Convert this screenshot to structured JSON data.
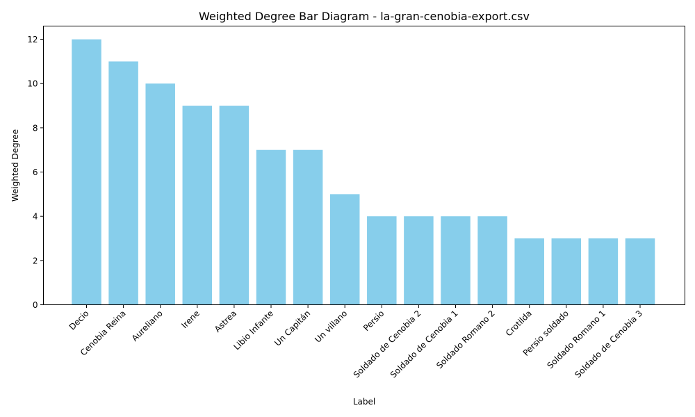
{
  "chart_data": {
    "type": "bar",
    "title": "Weighted Degree Bar Diagram - la-gran-cenobia-export.csv",
    "xlabel": "Label",
    "ylabel": "Weighted Degree",
    "categories": [
      "Decio",
      "Cenobia Reina",
      "Aureliano",
      "Irene",
      "Astrea",
      "Libio Infante",
      "Un Capitán",
      "Un villano",
      "Persio",
      "Soldado de Cenobia 2",
      "Soldado de Cenobia 1",
      "Soldado Romano 2",
      "Crotilda",
      "Persio soldado",
      "Soldado Romano 1",
      "Soldado de Cenobia 3"
    ],
    "values": [
      12,
      11,
      10,
      9,
      9,
      7,
      7,
      5,
      4,
      4,
      4,
      4,
      3,
      3,
      3,
      3
    ],
    "ylim": [
      0,
      12.6
    ],
    "yticks": [
      0,
      2,
      4,
      6,
      8,
      10,
      12
    ],
    "bar_color": "#87ceeb",
    "grid": false,
    "legend": "none",
    "xtick_rotation": 45
  }
}
